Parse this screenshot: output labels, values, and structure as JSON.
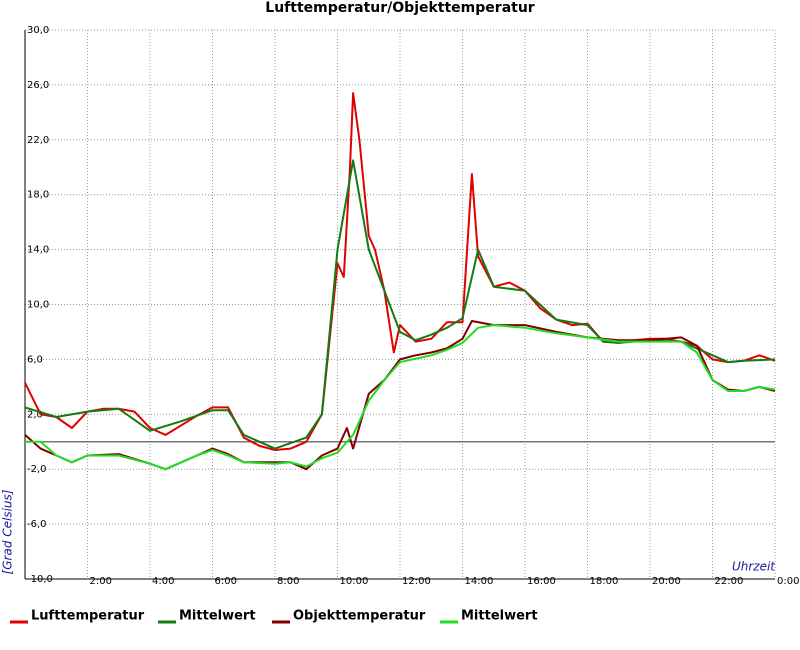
{
  "chart_data": {
    "type": "line",
    "title": "Lufttemperatur/Objekttemperatur",
    "y_label": "[Grad Celsius]",
    "x_label": "Uhrzeit",
    "xlim": [
      0,
      24
    ],
    "ylim": [
      -10,
      30
    ],
    "xticks": [
      {
        "value": 2,
        "label": "2:00"
      },
      {
        "value": 4,
        "label": "4:00"
      },
      {
        "value": 6,
        "label": "6:00"
      },
      {
        "value": 8,
        "label": "8:00"
      },
      {
        "value": 10,
        "label": "10:00"
      },
      {
        "value": 12,
        "label": "12:00"
      },
      {
        "value": 14,
        "label": "14:00"
      },
      {
        "value": 16,
        "label": "16:00"
      },
      {
        "value": 18,
        "label": "18:00"
      },
      {
        "value": 20,
        "label": "20:00"
      },
      {
        "value": 22,
        "label": "22:00"
      },
      {
        "value": 24,
        "label": "0:00"
      }
    ],
    "yticks": [
      {
        "value": -10,
        "label": "-10,0"
      },
      {
        "value": -6,
        "label": "-6,0"
      },
      {
        "value": -2,
        "label": "-2,0"
      },
      {
        "value": 2,
        "label": "2,0"
      },
      {
        "value": 6,
        "label": "6,0"
      },
      {
        "value": 10,
        "label": "10,0"
      },
      {
        "value": 14,
        "label": "14,0"
      },
      {
        "value": 18,
        "label": "18,0"
      },
      {
        "value": 22,
        "label": "22,0"
      },
      {
        "value": 26,
        "label": "26,0"
      },
      {
        "value": 30,
        "label": "30,0"
      }
    ],
    "grid": true,
    "reference_line": 0,
    "series": [
      {
        "name": "Lufttemperatur",
        "color": "#e00000",
        "x": [
          0,
          0.5,
          1,
          1.5,
          2,
          2.5,
          3,
          3.5,
          4,
          4.5,
          5,
          5.5,
          6,
          6.5,
          7,
          7.5,
          8,
          8.5,
          9,
          9.5,
          10,
          10.2,
          10.4,
          10.5,
          10.7,
          11,
          11.2,
          11.5,
          11.8,
          12,
          12.5,
          13,
          13.5,
          14,
          14.3,
          14.5,
          15,
          15.5,
          16,
          16.5,
          17,
          17.5,
          18,
          18.5,
          19,
          19.5,
          20,
          20.5,
          21,
          21.5,
          22,
          22.5,
          23,
          23.5,
          24
        ],
        "values": [
          4.3,
          2.0,
          1.8,
          1.0,
          2.2,
          2.4,
          2.4,
          2.2,
          1.0,
          0.5,
          1.2,
          1.9,
          2.5,
          2.5,
          0.3,
          -0.3,
          -0.6,
          -0.5,
          0.0,
          2.0,
          13.0,
          12.0,
          20.0,
          25.4,
          22.0,
          15.0,
          14.0,
          11.0,
          6.5,
          8.5,
          7.3,
          7.5,
          8.7,
          8.7,
          19.5,
          13.5,
          11.3,
          11.6,
          11.0,
          9.7,
          8.9,
          8.5,
          8.6,
          7.3,
          7.2,
          7.4,
          7.5,
          7.5,
          7.3,
          7.0,
          6.0,
          5.8,
          5.9,
          6.3,
          5.9
        ]
      },
      {
        "name": "Mittelwert",
        "color": "#157a15",
        "x": [
          0,
          1,
          2,
          3,
          4,
          5,
          6,
          6.5,
          7,
          8,
          9,
          9.5,
          10,
          10.5,
          11,
          12,
          12.5,
          13,
          13.5,
          14,
          14.5,
          15,
          16,
          17,
          18,
          18.5,
          19,
          20,
          21,
          22,
          22.5,
          23,
          24
        ],
        "values": [
          2.5,
          1.8,
          2.2,
          2.4,
          0.8,
          1.5,
          2.3,
          2.3,
          0.5,
          -0.5,
          0.3,
          2.0,
          14.0,
          20.5,
          14.0,
          8.0,
          7.4,
          7.8,
          8.3,
          9.0,
          14.0,
          11.3,
          11.0,
          8.9,
          8.5,
          7.3,
          7.2,
          7.4,
          7.3,
          6.3,
          5.8,
          5.9,
          6.0
        ]
      },
      {
        "name": "Objekttemperatur",
        "color": "#800000",
        "x": [
          0,
          0.5,
          1,
          1.5,
          2,
          3,
          4,
          4.5,
          5,
          5.5,
          6,
          6.5,
          7,
          7.5,
          8,
          8.5,
          9,
          9.5,
          10,
          10.3,
          10.5,
          11,
          11.5,
          12,
          12.5,
          13,
          13.5,
          14,
          14.3,
          15,
          16,
          17,
          18,
          19,
          20,
          21,
          21.5,
          22,
          22.5,
          23,
          23.5,
          24
        ],
        "values": [
          0.5,
          -0.5,
          -1.0,
          -1.5,
          -1.0,
          -0.9,
          -1.6,
          -2.0,
          -1.5,
          -1.0,
          -0.5,
          -0.9,
          -1.5,
          -1.5,
          -1.5,
          -1.5,
          -2.0,
          -1.0,
          -0.5,
          1.0,
          -0.5,
          3.5,
          4.5,
          6.0,
          6.3,
          6.5,
          6.8,
          7.5,
          8.8,
          8.5,
          8.5,
          8.0,
          7.6,
          7.4,
          7.4,
          7.6,
          7.0,
          4.5,
          3.8,
          3.7,
          4.0,
          3.7
        ]
      },
      {
        "name": "Mittelwert",
        "color": "#22dd22",
        "x": [
          0,
          0.5,
          1,
          1.5,
          2,
          3,
          4,
          4.5,
          5,
          5.5,
          6,
          6.5,
          7,
          8,
          8.5,
          9,
          9.5,
          10,
          10.5,
          11,
          11.5,
          12,
          13,
          13.5,
          14,
          14.5,
          15,
          16,
          17,
          18,
          19,
          20,
          21,
          21.5,
          22,
          22.5,
          23,
          23.5,
          24
        ],
        "values": [
          0.0,
          0.0,
          -1.0,
          -1.5,
          -1.0,
          -1.0,
          -1.6,
          -2.0,
          -1.5,
          -1.0,
          -0.6,
          -1.0,
          -1.5,
          -1.6,
          -1.5,
          -1.8,
          -1.2,
          -0.8,
          0.5,
          3.0,
          4.5,
          5.8,
          6.3,
          6.7,
          7.2,
          8.3,
          8.5,
          8.3,
          7.9,
          7.6,
          7.3,
          7.3,
          7.3,
          6.5,
          4.5,
          3.7,
          3.7,
          4.0,
          3.8
        ]
      }
    ]
  }
}
